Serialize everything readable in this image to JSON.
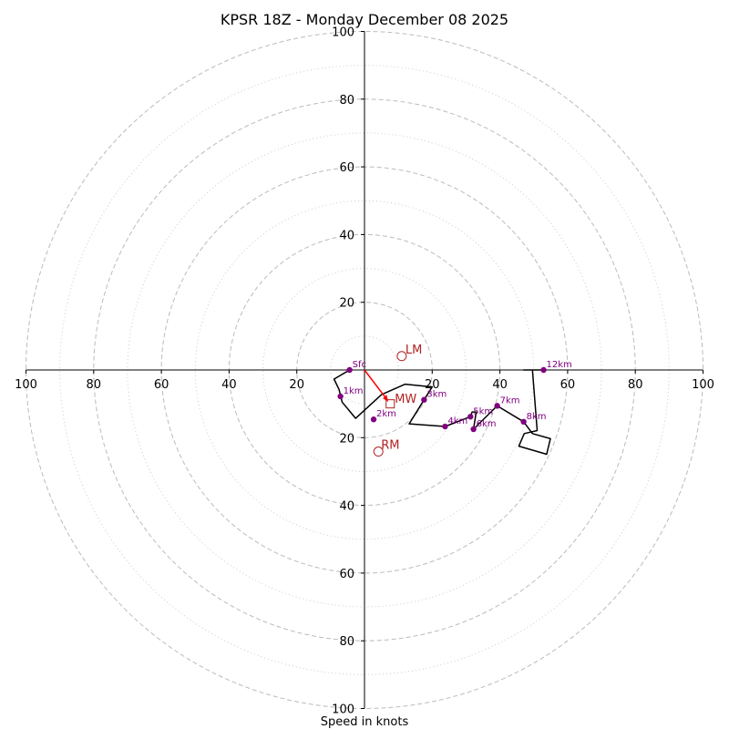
{
  "chart_data": {
    "type": "hodograph",
    "title": "KPSR 18Z - Monday December 08 2025",
    "xlabel": "Speed in knots",
    "range_knots": 100,
    "major_rings": [
      20,
      40,
      60,
      80,
      100
    ],
    "minor_rings": [
      10,
      30,
      50,
      70,
      90
    ],
    "x_ticks": [
      -100,
      -80,
      -60,
      -40,
      -20,
      20,
      40,
      60,
      80,
      100
    ],
    "y_ticks": [
      100,
      80,
      60,
      40,
      20,
      -20,
      -40,
      -60,
      -80,
      -100
    ],
    "x_tick_labels": [
      "100",
      "80",
      "60",
      "40",
      "20",
      "20",
      "40",
      "60",
      "80",
      "100"
    ],
    "y_tick_labels": [
      "100",
      "80",
      "60",
      "40",
      "20",
      "20",
      "40",
      "60",
      "80",
      "100"
    ],
    "trace": [
      [
        -4.4,
        0.0
      ],
      [
        -9.0,
        -2.7
      ],
      [
        -7.5,
        -5.8
      ],
      [
        -6.6,
        -9.5
      ],
      [
        -2.6,
        -14.3
      ],
      [
        5.0,
        -7.3
      ],
      [
        12.0,
        -4.2
      ],
      [
        20.0,
        -5.0
      ],
      [
        17.6,
        -8.8
      ],
      [
        13.2,
        -15.9
      ],
      [
        23.8,
        -16.7
      ],
      [
        31.3,
        -13.8
      ],
      [
        31.8,
        -12.4
      ],
      [
        33.0,
        -12.4
      ],
      [
        32.2,
        -17.5
      ],
      [
        39.2,
        -10.6
      ],
      [
        47.0,
        -15.3
      ],
      [
        49.6,
        -18.8
      ],
      [
        54.9,
        -20.3
      ],
      [
        53.8,
        -24.9
      ],
      [
        45.6,
        -22.5
      ],
      [
        47.2,
        -18.8
      ],
      [
        51.0,
        -17.9
      ],
      [
        49.6,
        0.0
      ],
      [
        47.0,
        0.0
      ],
      [
        52.9,
        0.0
      ]
    ],
    "height_markers": [
      {
        "label": "Sfc",
        "u": -4.4,
        "v": 0.0
      },
      {
        "label": "1km",
        "u": -7.1,
        "v": -7.8
      },
      {
        "label": "2km",
        "u": 2.7,
        "v": -14.6
      },
      {
        "label": "3km",
        "u": 17.6,
        "v": -8.8
      },
      {
        "label": "4km",
        "u": 23.8,
        "v": -16.7
      },
      {
        "label": "5km",
        "u": 31.3,
        "v": -13.8
      },
      {
        "label": "6km",
        "u": 32.2,
        "v": -17.5
      },
      {
        "label": "7km",
        "u": 39.2,
        "v": -10.6
      },
      {
        "label": "8km",
        "u": 47.0,
        "v": -15.3
      },
      {
        "label": "12km",
        "u": 52.9,
        "v": 0.0
      }
    ],
    "storm_motion": {
      "mw": {
        "label": "MW",
        "u": 7.6,
        "v": -10.0
      },
      "lm": {
        "label": "LM",
        "u": 11.0,
        "v": 4.1
      },
      "rm": {
        "label": "RM",
        "u": 4.1,
        "v": -24.1
      }
    },
    "colors": {
      "trace": "#000000",
      "markers": "#800080",
      "storm_motion": "#b22222",
      "mean_wind_arrow": "#ff0000",
      "grid": "#bbbbbb",
      "axes": "#000000"
    }
  }
}
